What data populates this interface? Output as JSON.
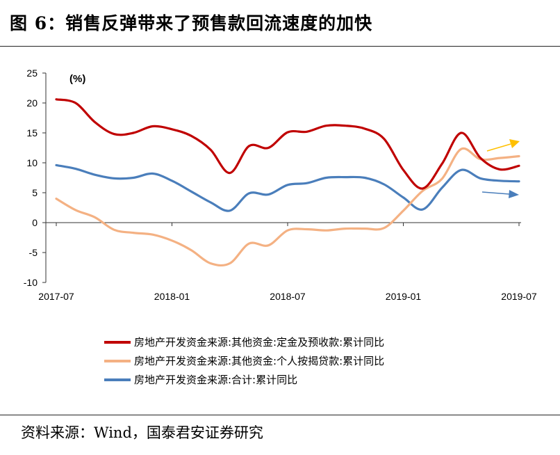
{
  "title": "图 6：销售反弹带来了预售款回流速度的加快",
  "source": "资料来源：Wind，国泰君安证券研究",
  "colors": {
    "deposits": "#c00000",
    "mortgage": "#f4b183",
    "total": "#4a7ebb",
    "arrow_up": "#ffc000",
    "arrow_right": "#4a7ebb"
  },
  "chart_data": {
    "type": "line",
    "title": "",
    "unit_label": "(%)",
    "ylim": [
      -10,
      25
    ],
    "yticks": [
      "25",
      "20",
      "15",
      "10",
      "5",
      "0",
      "-5",
      "-10"
    ],
    "x_tick_labels": [
      "2017-07",
      "2018-01",
      "2018-07",
      "2019-01",
      "2019-07"
    ],
    "x": [
      "2017-07",
      "2017-08",
      "2017-09",
      "2017-10",
      "2017-11",
      "2017-12",
      "2018-01",
      "2018-02",
      "2018-03",
      "2018-04",
      "2018-05",
      "2018-06",
      "2018-07",
      "2018-08",
      "2018-09",
      "2018-10",
      "2018-11",
      "2018-12",
      "2019-01",
      "2019-02",
      "2019-03",
      "2019-04",
      "2019-05",
      "2019-06",
      "2019-07"
    ],
    "series": [
      {
        "name": "房地产开发资金来源:其他资金:定金及预收款:累计同比",
        "color": "#c00000",
        "values": [
          20.6,
          20.0,
          16.8,
          14.8,
          15.0,
          16.1,
          15.6,
          14.5,
          12.2,
          8.3,
          12.8,
          12.5,
          15.1,
          15.2,
          16.2,
          16.2,
          15.7,
          14.0,
          8.8,
          5.7,
          9.8,
          15.0,
          10.8,
          8.9,
          9.5
        ]
      },
      {
        "name": "房地产开发资金来源:其他资金:个人按揭贷款:累计同比",
        "color": "#f4b183",
        "values": [
          4.0,
          2.1,
          0.9,
          -1.2,
          -1.7,
          -2.0,
          -3.0,
          -4.6,
          -6.8,
          -6.8,
          -3.5,
          -3.8,
          -1.3,
          -1.1,
          -1.3,
          -1.0,
          -1.0,
          -0.9,
          2.0,
          5.3,
          7.3,
          12.3,
          10.6,
          10.8,
          11.1
        ]
      },
      {
        "name": "房地产开发资金来源:合计:累计同比",
        "color": "#4a7ebb",
        "values": [
          9.6,
          9.0,
          8.0,
          7.4,
          7.5,
          8.2,
          7.0,
          5.2,
          3.4,
          2.0,
          4.9,
          4.7,
          6.3,
          6.6,
          7.5,
          7.6,
          7.5,
          6.4,
          4.2,
          2.2,
          5.8,
          8.8,
          7.4,
          7.0,
          6.9
        ]
      }
    ]
  }
}
